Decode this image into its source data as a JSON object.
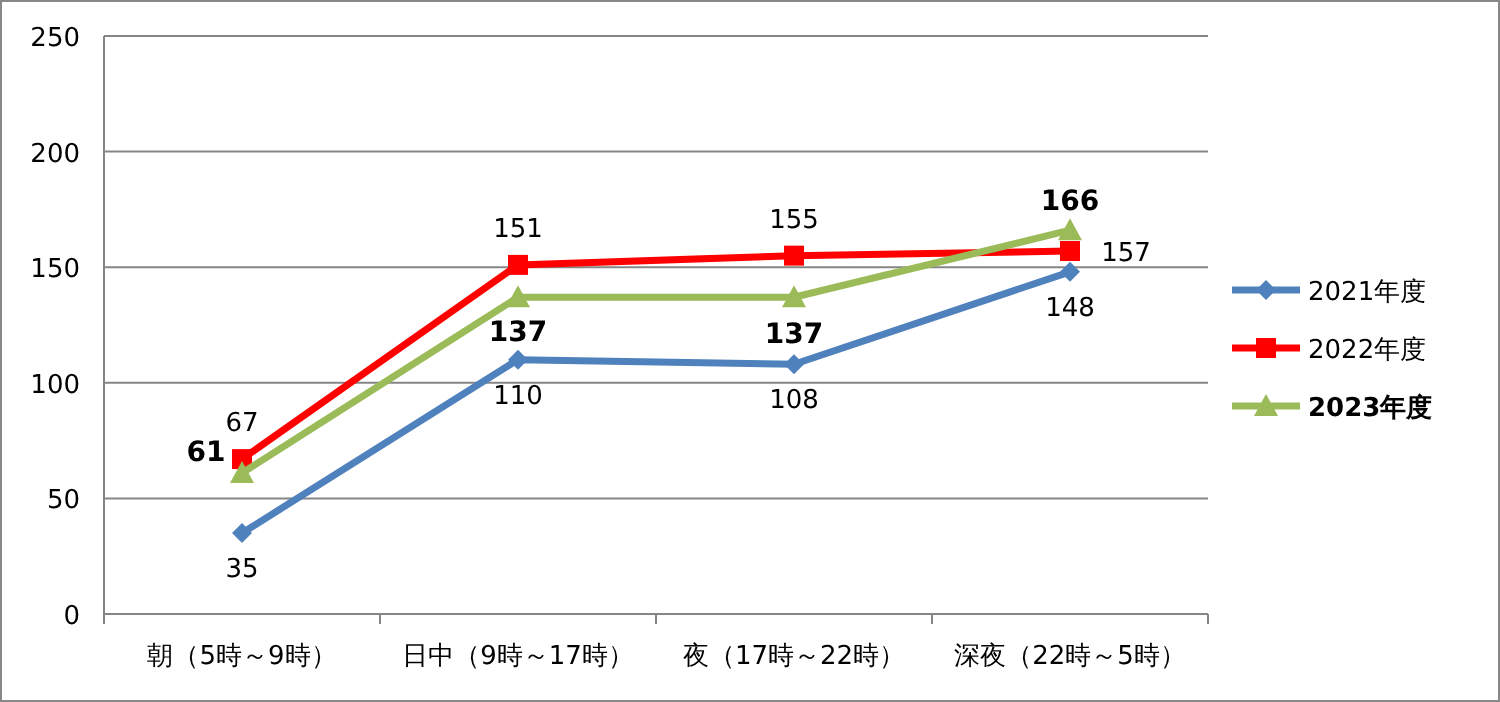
{
  "chart_data": {
    "type": "line",
    "categories": [
      "朝（5時～9時）",
      "日中（9時～17時）",
      "夜（17時～22時）",
      "深夜（22時～5時）"
    ],
    "series": [
      {
        "name": "2021年度",
        "color": "#4f81bd",
        "marker": "diamond",
        "values": [
          35,
          110,
          108,
          148
        ]
      },
      {
        "name": "2022年度",
        "color": "#ff0000",
        "marker": "square",
        "values": [
          67,
          151,
          155,
          157
        ]
      },
      {
        "name": "2023年度",
        "color": "#9bbb59",
        "marker": "triangle",
        "values": [
          61,
          137,
          137,
          166
        ]
      }
    ],
    "ylim": [
      0,
      250
    ],
    "yticks": [
      0,
      50,
      100,
      150,
      200,
      250
    ],
    "grid": "y",
    "legend": "right",
    "data_labels": true
  }
}
